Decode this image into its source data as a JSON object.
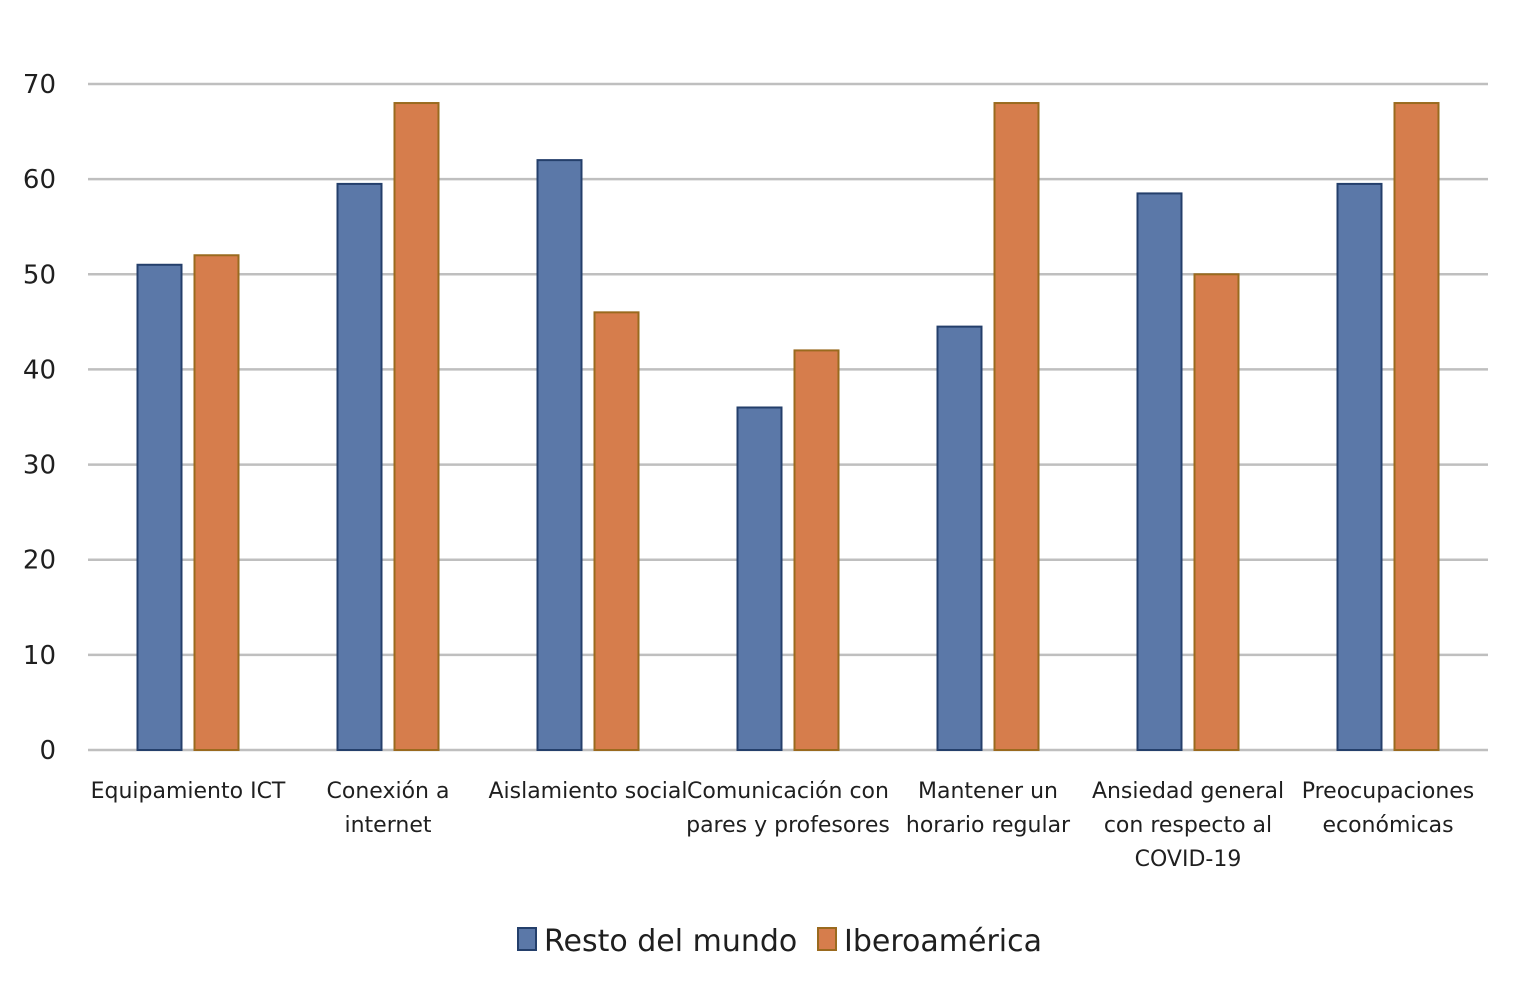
{
  "chart_data": {
    "type": "bar",
    "title": "",
    "xlabel": "",
    "ylabel": "",
    "ylim": [
      0,
      70
    ],
    "yticks": [
      0,
      10,
      20,
      30,
      40,
      50,
      60,
      70
    ],
    "grid": true,
    "legend_position": "bottom",
    "categories": [
      [
        "Equipamiento ICT"
      ],
      [
        "Conexión a",
        "internet"
      ],
      [
        "Aislamiento social"
      ],
      [
        "Comunicación con",
        "pares y profesores"
      ],
      [
        "Mantener un",
        "horario regular"
      ],
      [
        "Ansiedad general",
        "con respecto al",
        "COVID-19"
      ],
      [
        "Preocupaciones",
        "económicas"
      ]
    ],
    "series": [
      {
        "name": "Resto del mundo",
        "color": "#5b78a8",
        "edge": "#243f6b",
        "values": [
          51,
          59.5,
          62,
          36,
          44.5,
          58.5,
          59.5
        ]
      },
      {
        "name": "Iberoamérica",
        "color": "#d67d4c",
        "edge": "#9a6a1e",
        "values": [
          52,
          68,
          46,
          42,
          68,
          50,
          68
        ]
      }
    ]
  }
}
